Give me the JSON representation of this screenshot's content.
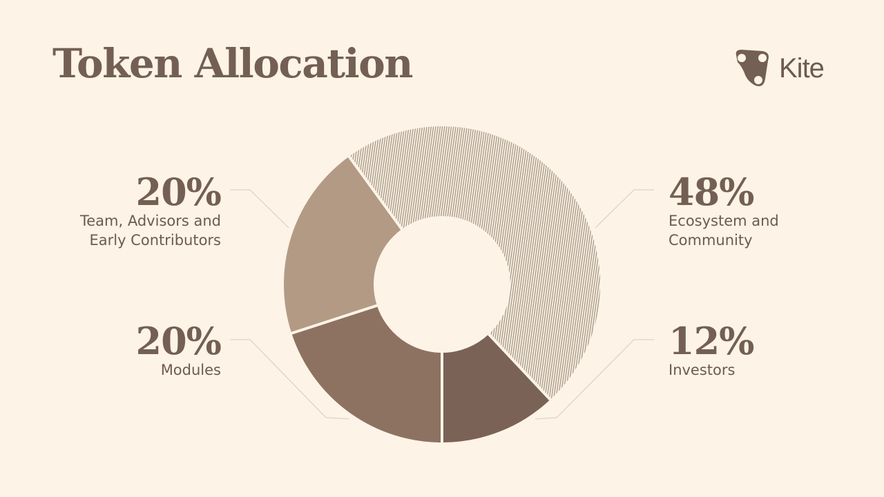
{
  "title": "Token Allocation",
  "logo": {
    "text": "Kite",
    "icon": "kite-logo-icon"
  },
  "colors": {
    "background": "#fdf3e7",
    "text": "#735f53",
    "hatch": "#a89a88"
  },
  "chart_data": {
    "type": "pie",
    "donut": true,
    "title": "Token Allocation",
    "start_angle_deg": -36,
    "slices": [
      {
        "label": "Ecosystem and Community",
        "lines": [
          "Ecosystem and",
          "Community"
        ],
        "value": 48,
        "display": "48%",
        "color": "hatched",
        "side": "right-top"
      },
      {
        "label": "Investors",
        "lines": [
          "Investors"
        ],
        "value": 12,
        "display": "12%",
        "color": "#7a6256",
        "side": "right-bottom"
      },
      {
        "label": "Modules",
        "lines": [
          "Modules"
        ],
        "value": 20,
        "display": "20%",
        "color": "#8e7261",
        "side": "left-bottom"
      },
      {
        "label": "Team, Advisors and Early Contributors",
        "lines": [
          "Team, Advisors and",
          "Early Contributors"
        ],
        "value": 20,
        "display": "20%",
        "color": "#b39a84",
        "side": "left-top"
      }
    ]
  }
}
